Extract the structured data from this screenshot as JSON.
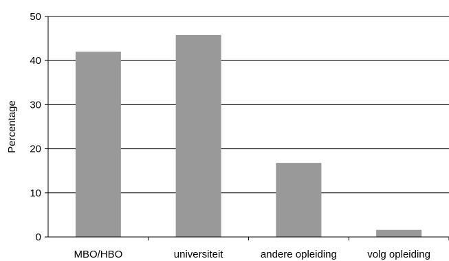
{
  "chart_data": {
    "type": "bar",
    "title": "",
    "xlabel": "",
    "ylabel": "Percentage",
    "categories": [
      "MBO/HBO",
      "universiteit",
      "andere opleiding",
      "volg opleiding"
    ],
    "values": [
      42,
      45.8,
      16.8,
      1.6
    ],
    "ylim": [
      0,
      50
    ],
    "yticks": [
      0,
      10,
      20,
      30,
      40,
      50
    ],
    "grid": true,
    "legend": "none",
    "colors": {
      "bar": "#999999",
      "grid": "#000000",
      "axis": "#000000"
    }
  }
}
